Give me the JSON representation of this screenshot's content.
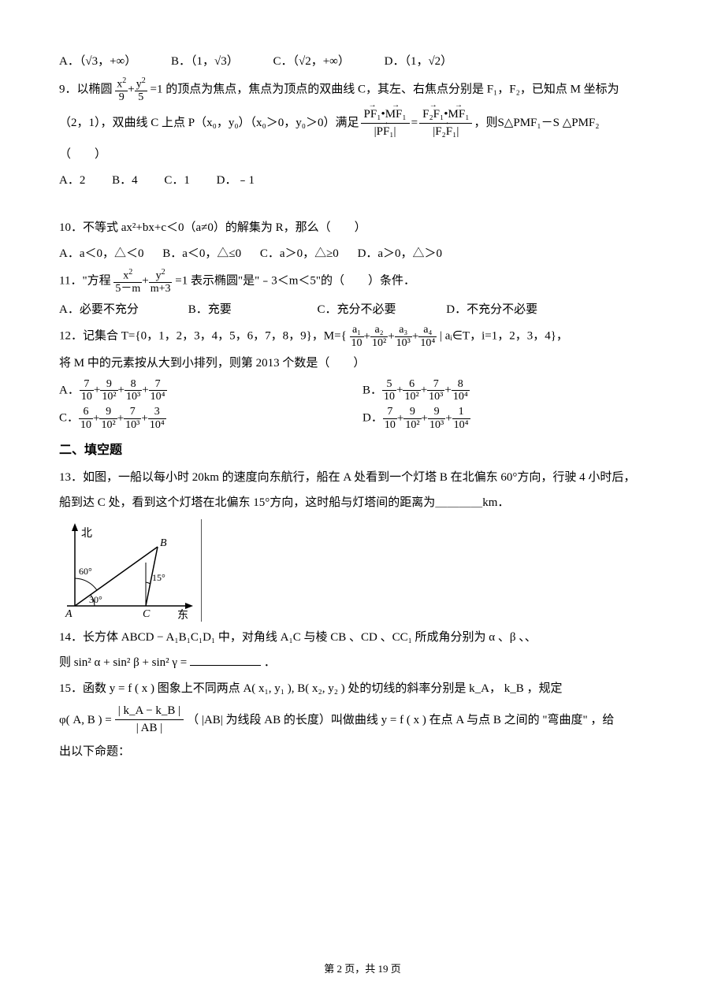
{
  "page": {
    "current": 2,
    "total": 19,
    "label_prefix": "第",
    "label_mid": "页，共",
    "label_suffix": "页"
  },
  "q8_choices": {
    "A": "A．（√3，+∞）",
    "B": "B．（1，√3）",
    "C": "C．（√2，+∞）",
    "D": "D．（1，√2）"
  },
  "q9": {
    "stem_a": "9．以椭圆",
    "ellipse_num_l": "x",
    "ellipse_den_l": "9",
    "ellipse_num_r": "y",
    "ellipse_den_r": "5",
    "stem_b": "=1 的顶点为焦点，焦点为顶点的双曲线 C，其左、右焦点分别是 F₁，F₂，已知点 M 坐标为",
    "line2_a": "（2，1），双曲线 C 上点 P（x₀，y₀）（x₀＞0，y₀＞0）满足",
    "vec_PF1": "PF₁",
    "vec_MF1": "MF₁",
    "vec_F2F1": "F₂F₁",
    "line2_b": "，则",
    "tri_expr": "S△PMF₁－S △PMF₂",
    "paren": "（　　）",
    "choices": {
      "A": "A．2",
      "B": "B．4",
      "C": "C．1",
      "D": "D．﹣1"
    }
  },
  "q10": {
    "stem": "10．不等式 ax²+bx+c＜0（a≠0）的解集为 R，那么（　　）",
    "choices": {
      "A": "A．a＜0，△＜0",
      "B": "B．a＜0，△≤0",
      "C": "C．a＞0，△≥0",
      "D": "D．a＞0，△＞0"
    }
  },
  "q11": {
    "stem_a": "11．\"方程",
    "num_l": "x",
    "den_l": "5－m",
    "num_r": "y",
    "den_r": "m+3",
    "stem_b": "=1 表示椭圆\"是\"﹣3＜m＜5\"的（　　）条件．",
    "choices": {
      "A": "A．必要不充分",
      "B": "B．充要",
      "C": "C．充分不必要",
      "D": "D．不充分不必要"
    }
  },
  "q12": {
    "stem_a": "12．记集合 T={0，1，2，3，4，5，6，7，8，9}，M={",
    "terms": [
      {
        "num": "a₁",
        "den": "10"
      },
      {
        "num": "a₂",
        "den": "10²"
      },
      {
        "num": "a₃",
        "den": "10³"
      },
      {
        "num": "a₄",
        "den": "10⁴"
      }
    ],
    "stem_b": "| aᵢ∈T，i=1，2，3，4}，",
    "line2": "将 M 中的元素按从大到小排列，则第 2013 个数是（　　）",
    "choices": {
      "A": [
        {
          "n": "7",
          "d": "10"
        },
        {
          "n": "9",
          "d": "10²"
        },
        {
          "n": "8",
          "d": "10³"
        },
        {
          "n": "7",
          "d": "10⁴"
        }
      ],
      "B": [
        {
          "n": "5",
          "d": "10"
        },
        {
          "n": "6",
          "d": "10²"
        },
        {
          "n": "7",
          "d": "10³"
        },
        {
          "n": "8",
          "d": "10⁴"
        }
      ],
      "C": [
        {
          "n": "6",
          "d": "10"
        },
        {
          "n": "9",
          "d": "10²"
        },
        {
          "n": "7",
          "d": "10³"
        },
        {
          "n": "3",
          "d": "10⁴"
        }
      ],
      "D": [
        {
          "n": "7",
          "d": "10"
        },
        {
          "n": "9",
          "d": "10²"
        },
        {
          "n": "9",
          "d": "10³"
        },
        {
          "n": "1",
          "d": "10⁴"
        }
      ]
    }
  },
  "section2": "二、填空题",
  "q13": {
    "line1": "13．如图，一船以每小时 20km 的速度向东航行，船在 A 处看到一个灯塔 B 在北偏东 60°方向，行驶 4 小时后，",
    "line2": "船到达 C 处，看到这个灯塔在北偏东 15°方向，这时船与灯塔间的距离为＿＿＿＿km．",
    "diagram": {
      "north_label": "北",
      "east_label": "东",
      "A": "A",
      "B": "B",
      "C": "C",
      "angles": [
        "60°",
        "30°",
        "15°"
      ],
      "colors": {
        "stroke": "#000000",
        "fill": "#ffffff"
      }
    }
  },
  "q14": {
    "line1": "14．长方体 ABCD − A₁B₁C₁D₁ 中，对角线 A₁C 与棱 CB 、CD 、CC₁ 所成角分别为 α 、β 、、",
    "line2_a": "则 sin² α + sin² β + sin² γ =",
    "line2_b": "．"
  },
  "q15": {
    "line1": "15．函数 y = f ( x ) 图象上不同两点 A( x₁, y₁ ), B( x₂, y₂ ) 处的切线的斜率分别是 k_A， k_B ，规定",
    "phi_lhs": "φ( A, B ) =",
    "phi_num": "| k_A − k_B |",
    "phi_den": "| AB |",
    "mid": "（ |AB| 为线段 AB 的长度）叫做曲线 y = f ( x ) 在点 A 与点 B 之间的 \"弯曲度\" ，给",
    "line3": "出以下命题："
  }
}
